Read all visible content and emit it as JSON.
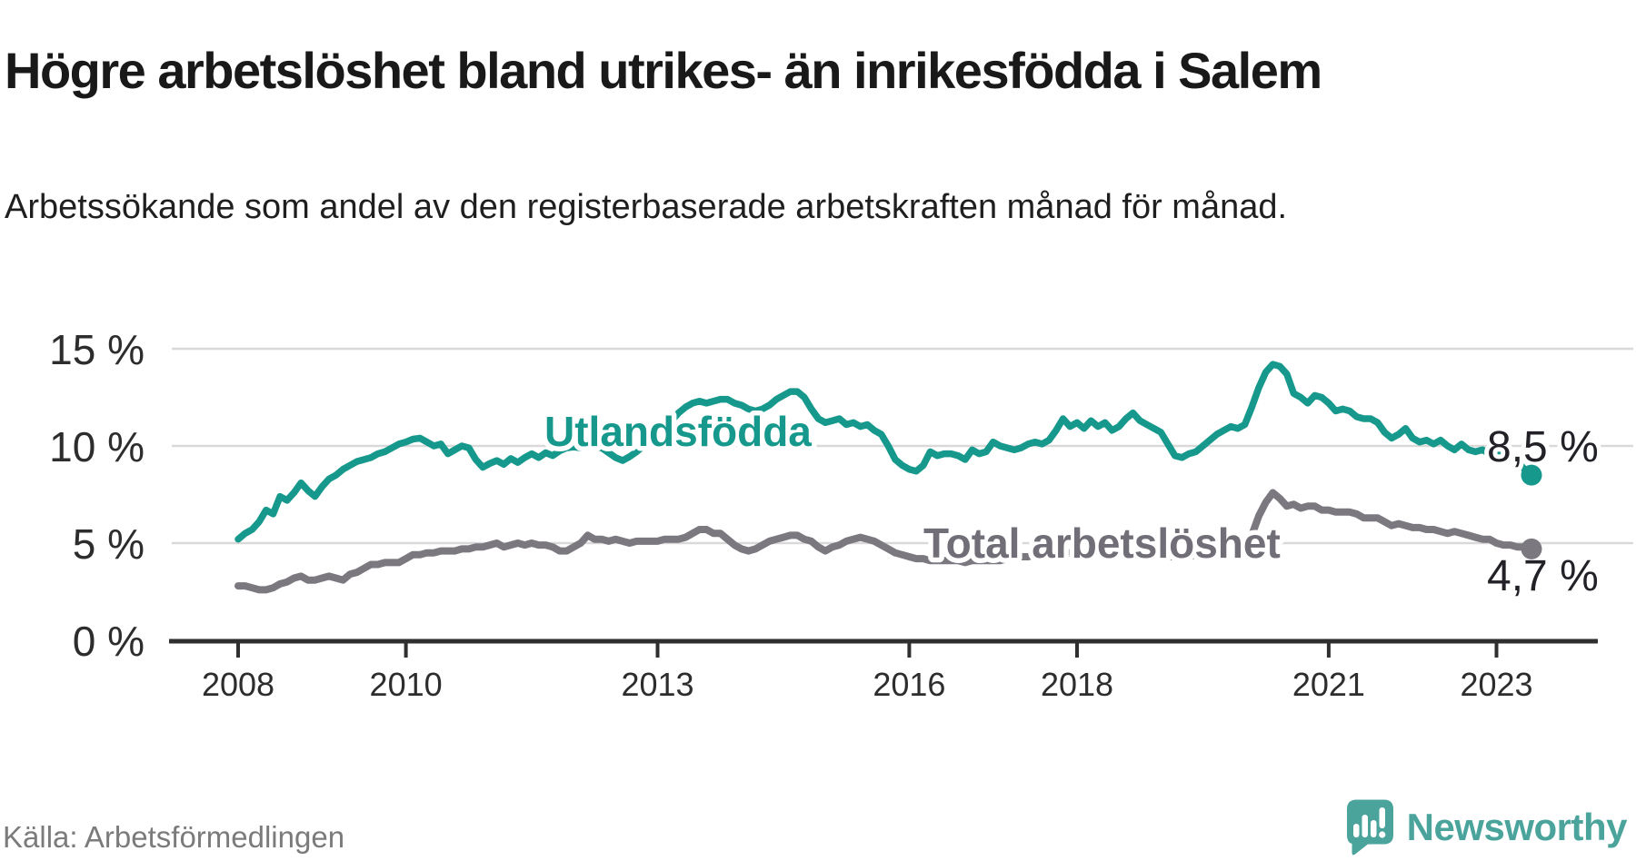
{
  "header": {
    "title": "Högre arbetslöshet bland utrikes- än inrikesfödda i Salem",
    "subtitle": "Arbetssökande som andel av den registerbaserade arbetskraften månad för månad."
  },
  "footer": {
    "source": "Källa: Arbetsförmedlingen",
    "brand": "Newsworthy",
    "brand_color": "#4aa49c"
  },
  "chart_data": {
    "type": "line",
    "title": "Högre arbetslöshet bland utrikes- än inrikesfödda i Salem",
    "subtitle": "Arbetssökande som andel av den registerbaserade arbetskraften månad för månad.",
    "unit": "%",
    "grid": "horizontal",
    "legend_position": "inline",
    "ylim": [
      0,
      15.8
    ],
    "xlim": [
      2007.2,
      2024.7
    ],
    "y_ticks": [
      0,
      5,
      10,
      15
    ],
    "y_tick_labels": [
      "0 %",
      "5 %",
      "10 %",
      "15 %"
    ],
    "x_ticks": [
      2008,
      2010,
      2013,
      2016,
      2018,
      2021,
      2023
    ],
    "x_tick_labels": [
      "2008",
      "2010",
      "2013",
      "2016",
      "2018",
      "2021",
      "2023"
    ],
    "grid_color": "#d9d9d9",
    "axis_color": "#2f2f2f",
    "tick_label_color": "#2d2d2d",
    "series": [
      {
        "name": "Utlandsfödda",
        "color": "#16998c",
        "label_color": "#16998c",
        "end_label": "8,5 %",
        "last_value": 8.5,
        "start_year": 2008,
        "interval_months": 1,
        "values": [
          5.2,
          5.5,
          5.7,
          6.1,
          6.7,
          6.5,
          7.4,
          7.2,
          7.6,
          8.1,
          7.7,
          7.4,
          7.9,
          8.3,
          8.5,
          8.8,
          9.0,
          9.2,
          9.3,
          9.4,
          9.6,
          9.7,
          9.9,
          10.1,
          10.2,
          10.35,
          10.4,
          10.2,
          10.0,
          10.1,
          9.6,
          9.8,
          10.0,
          9.9,
          9.3,
          8.9,
          9.1,
          9.25,
          9.05,
          9.35,
          9.15,
          9.4,
          9.6,
          9.4,
          9.65,
          9.5,
          9.75,
          9.9,
          9.95,
          9.9,
          10.05,
          9.95,
          9.9,
          9.65,
          9.4,
          9.25,
          9.45,
          9.7,
          10.0,
          10.3,
          10.6,
          11.0,
          11.3,
          11.7,
          12.0,
          12.2,
          12.3,
          12.2,
          12.3,
          12.4,
          12.4,
          12.2,
          12.1,
          11.9,
          11.8,
          11.9,
          12.1,
          12.4,
          12.6,
          12.8,
          12.8,
          12.5,
          11.9,
          11.4,
          11.2,
          11.3,
          11.4,
          11.1,
          11.2,
          11.0,
          11.1,
          10.8,
          10.6,
          10.0,
          9.3,
          9.0,
          8.8,
          8.7,
          9.0,
          9.7,
          9.5,
          9.6,
          9.6,
          9.5,
          9.3,
          9.8,
          9.6,
          9.7,
          10.2,
          10.0,
          9.9,
          9.8,
          9.9,
          10.1,
          10.2,
          10.1,
          10.3,
          10.8,
          11.4,
          11.0,
          11.2,
          10.9,
          11.3,
          11.0,
          11.2,
          10.8,
          11.0,
          11.4,
          11.7,
          11.3,
          11.1,
          10.9,
          10.7,
          10.1,
          9.5,
          9.4,
          9.6,
          9.7,
          10.0,
          10.3,
          10.6,
          10.8,
          11.0,
          10.9,
          11.1,
          12.0,
          13.0,
          13.8,
          14.2,
          14.1,
          13.7,
          12.7,
          12.5,
          12.2,
          12.6,
          12.5,
          12.2,
          11.8,
          11.9,
          11.8,
          11.5,
          11.4,
          11.4,
          11.2,
          10.7,
          10.4,
          10.6,
          10.9,
          10.4,
          10.2,
          10.3,
          10.1,
          10.3,
          10.0,
          9.8,
          10.1,
          9.8,
          9.7,
          9.8,
          9.6,
          9.7,
          9.4,
          9.6,
          9.2,
          8.8,
          8.5
        ]
      },
      {
        "name": "Total arbetslöshet",
        "color": "#7b787f",
        "label_color": "#716e77",
        "end_label": "4,7 %",
        "last_value": 4.7,
        "start_year": 2008,
        "interval_months": 1,
        "values": [
          2.8,
          2.8,
          2.7,
          2.6,
          2.6,
          2.7,
          2.9,
          3.0,
          3.2,
          3.3,
          3.1,
          3.1,
          3.2,
          3.3,
          3.2,
          3.1,
          3.4,
          3.5,
          3.7,
          3.9,
          3.9,
          4.0,
          4.0,
          4.0,
          4.2,
          4.4,
          4.4,
          4.5,
          4.5,
          4.6,
          4.6,
          4.6,
          4.7,
          4.7,
          4.8,
          4.8,
          4.9,
          5.0,
          4.8,
          4.9,
          5.0,
          4.9,
          5.0,
          4.9,
          4.9,
          4.8,
          4.6,
          4.6,
          4.8,
          5.0,
          5.4,
          5.2,
          5.2,
          5.1,
          5.2,
          5.1,
          5.0,
          5.1,
          5.1,
          5.1,
          5.1,
          5.2,
          5.2,
          5.2,
          5.3,
          5.5,
          5.7,
          5.7,
          5.5,
          5.5,
          5.2,
          4.9,
          4.7,
          4.6,
          4.7,
          4.9,
          5.1,
          5.2,
          5.3,
          5.4,
          5.4,
          5.2,
          5.1,
          4.8,
          4.6,
          4.8,
          4.9,
          5.1,
          5.2,
          5.3,
          5.2,
          5.1,
          4.9,
          4.7,
          4.5,
          4.4,
          4.3,
          4.2,
          4.2,
          4.1,
          4.1,
          4.1,
          4.1,
          4.1,
          4.0,
          4.1,
          4.1,
          4.1,
          4.1,
          4.1,
          4.2,
          4.2,
          4.3,
          4.3,
          4.4,
          4.4,
          4.5,
          4.5,
          4.5,
          4.5,
          4.6,
          4.6,
          4.6,
          4.6,
          4.5,
          4.5,
          4.5,
          4.4,
          4.4,
          4.4,
          4.3,
          4.3,
          4.3,
          4.3,
          4.3,
          4.3,
          4.3,
          4.4,
          4.4,
          4.5,
          4.5,
          4.6,
          4.6,
          4.7,
          4.9,
          5.4,
          6.4,
          7.1,
          7.6,
          7.3,
          6.9,
          7.0,
          6.8,
          6.9,
          6.9,
          6.7,
          6.7,
          6.6,
          6.6,
          6.6,
          6.5,
          6.3,
          6.3,
          6.3,
          6.1,
          5.9,
          6.0,
          5.9,
          5.8,
          5.8,
          5.7,
          5.7,
          5.6,
          5.5,
          5.6,
          5.5,
          5.4,
          5.3,
          5.2,
          5.2,
          5.0,
          4.9,
          4.9,
          4.8,
          4.8,
          4.7
        ]
      }
    ]
  }
}
